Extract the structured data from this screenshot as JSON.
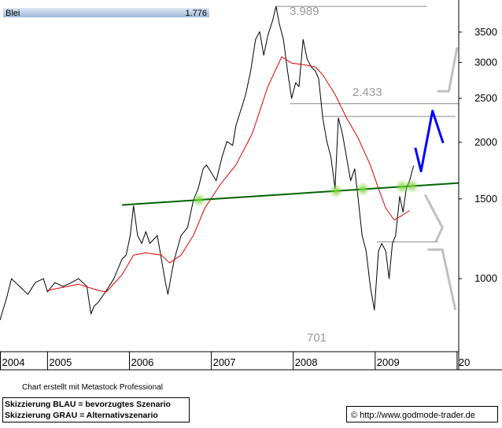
{
  "chart_data": {
    "type": "line",
    "title": "Blei",
    "last_value_label": "1.776",
    "log_y": true,
    "xlim": [
      2004.42,
      2010.02
    ],
    "ylim": [
      690,
      4120
    ],
    "xticks": [
      2004,
      2005,
      2006,
      2007,
      2008,
      2009,
      {
        "value": 2010,
        "label": "20"
      }
    ],
    "yticks": [
      1000,
      1500,
      2000,
      2500,
      3000,
      3500
    ],
    "series": [
      {
        "color": "#000000",
        "width": 1,
        "x": [
          2004.42,
          2004.5,
          2004.56,
          2004.66,
          2004.76,
          2004.85,
          2004.95,
          2005.0,
          2005.09,
          2005.19,
          2005.29,
          2005.38,
          2005.48,
          2005.53,
          2005.57,
          2005.62,
          2005.72,
          2005.81,
          2005.91,
          2005.96,
          2006.01,
          2006.05,
          2006.1,
          2006.15,
          2006.2,
          2006.25,
          2006.34,
          2006.39,
          2006.44,
          2006.47,
          2006.52,
          2006.55,
          2006.63,
          2006.71,
          2006.78,
          2006.84,
          2006.9,
          2006.94,
          2007.0,
          2007.06,
          2007.13,
          2007.19,
          2007.26,
          2007.3,
          2007.36,
          2007.42,
          2007.48,
          2007.54,
          2007.59,
          2007.64,
          2007.69,
          2007.75,
          2007.79,
          2007.83,
          2007.88,
          2007.93,
          2007.98,
          2008.03,
          2008.07,
          2008.12,
          2008.17,
          2008.22,
          2008.27,
          2008.31,
          2008.36,
          2008.41,
          2008.46,
          2008.51,
          2008.55,
          2008.6,
          2008.65,
          2008.7,
          2008.75,
          2008.79,
          2008.84,
          2008.89,
          2008.94,
          2008.99,
          2009.04,
          2009.08,
          2009.13,
          2009.17,
          2009.21,
          2009.25,
          2009.3,
          2009.34,
          2009.38,
          2009.42,
          2009.47
        ],
        "values": [
          810,
          905,
          1000,
          961,
          923,
          980,
          1000,
          935,
          980,
          961,
          980,
          1000,
          961,
          836,
          870,
          887,
          942,
          1000,
          1105,
          1127,
          1245,
          1448,
          1245,
          1196,
          1270,
          1196,
          1245,
          1105,
          980,
          923,
          1040,
          1105,
          1245,
          1296,
          1489,
          1581,
          1747,
          1782,
          1713,
          1645,
          1854,
          2008,
          1968,
          2175,
          2355,
          2551,
          2874,
          3372,
          3508,
          3113,
          3439,
          3724,
          3989,
          3650,
          3372,
          2874,
          2500,
          2707,
          2654,
          3372,
          3050,
          2932,
          2874,
          2762,
          2263,
          2008,
          1854,
          1581,
          2263,
          2089,
          1854,
          1645,
          1747,
          1518,
          1245,
          1150,
          961,
          853,
          1150,
          1196,
          1150,
          1000,
          1196,
          1245,
          1519,
          1403,
          1581,
          1645,
          1776
        ]
      },
      {
        "color": "#e00000",
        "width": 1,
        "x": [
          2005.0,
          2005.38,
          2005.62,
          2005.72,
          2005.91,
          2006.05,
          2006.2,
          2006.39,
          2006.49,
          2006.63,
          2006.78,
          2006.92,
          2007.11,
          2007.3,
          2007.5,
          2007.69,
          2007.86,
          2007.98,
          2008.12,
          2008.27,
          2008.36,
          2008.51,
          2008.65,
          2008.79,
          2008.94,
          2009.04,
          2009.13,
          2009.23,
          2009.32,
          2009.42
        ],
        "values": [
          942,
          972,
          942,
          935,
          1020,
          1127,
          1140,
          1127,
          1083,
          1127,
          1245,
          1431,
          1613,
          1782,
          2089,
          2654,
          3087,
          2990,
          2967,
          2932,
          2817,
          2551,
          2263,
          2048,
          1782,
          1581,
          1431,
          1348,
          1375,
          1414
        ]
      },
      {
        "color": "#006400",
        "width": 2,
        "x": [
          2005.91,
          2010.02
        ],
        "values": [
          1454,
          1626
        ]
      },
      {
        "color": "#0000ff",
        "width": 3,
        "x": [
          2009.49,
          2009.56,
          2009.7,
          2009.83
        ],
        "values": [
          1945,
          1726,
          2345,
          1992
        ]
      },
      {
        "color": "#c0c0c0",
        "width": 3,
        "x": [
          2009.76,
          2009.9,
          2010.0
        ],
        "values": [
          2591,
          2591,
          3238
        ]
      },
      {
        "color": "#c0c0c0",
        "width": 3,
        "x": [
          2009.61,
          2009.82,
          2009.74
        ],
        "values": [
          1531,
          1296,
          1206
        ]
      },
      {
        "color": "#c0c0c0",
        "width": 3,
        "x": [
          2009.64,
          2009.82,
          2009.98
        ],
        "values": [
          1159,
          1159,
          853
        ]
      }
    ],
    "levels": [
      {
        "value": 3989,
        "x": [
          2007.79,
          2009.63
        ]
      },
      {
        "value": 2433,
        "x": [
          2007.96,
          2010.02
        ]
      },
      {
        "value": 2280,
        "x": [
          2008.36,
          2009.98
        ]
      },
      {
        "value": 1206,
        "x": [
          2009.02,
          2009.77
        ]
      }
    ],
    "highlights": [
      2006.85,
      2008.52,
      2008.85,
      2009.33,
      2009.45
    ],
    "annotations": [
      "3.989",
      "2.433",
      "701"
    ],
    "credit": "Chart erstellt mit Metastock Professional",
    "notes": [
      "Skizzierung BLAU = bevorzugtes Szenario",
      "Skizzierung GRAU = Alternativszenario"
    ],
    "source": "© http://www.godmode-trader.de"
  }
}
